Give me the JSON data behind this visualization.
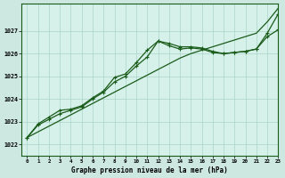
{
  "title": "Graphe pression niveau de la mer (hPa)",
  "bg_color": "#cce8e0",
  "plot_bg": "#d6f0ea",
  "grid_color": "#aad4c8",
  "line_color": "#1a5c1a",
  "xlim": [
    -0.5,
    23
  ],
  "ylim": [
    1021.5,
    1028.2
  ],
  "yticks": [
    1022,
    1023,
    1024,
    1025,
    1026,
    1027
  ],
  "ytick_labels": [
    "1022",
    "1023",
    "1024",
    "1025",
    "1026",
    "1027"
  ],
  "xticks": [
    0,
    1,
    2,
    3,
    4,
    5,
    6,
    7,
    8,
    9,
    10,
    11,
    12,
    13,
    14,
    15,
    16,
    17,
    18,
    19,
    20,
    21,
    22,
    23
  ],
  "series_trend": [
    1022.3,
    1022.55,
    1022.8,
    1023.05,
    1023.3,
    1023.55,
    1023.8,
    1024.05,
    1024.3,
    1024.55,
    1024.8,
    1025.05,
    1025.3,
    1025.55,
    1025.8,
    1026.0,
    1026.15,
    1026.3,
    1026.45,
    1026.6,
    1026.75,
    1026.9,
    1027.4,
    1028.0
  ],
  "series_jagged1": [
    1022.3,
    1022.9,
    1023.2,
    1023.5,
    1023.55,
    1023.7,
    1024.05,
    1024.35,
    1024.95,
    1025.1,
    1025.6,
    1026.15,
    1026.55,
    1026.35,
    1026.2,
    1026.25,
    1026.2,
    1026.05,
    1026.0,
    1026.05,
    1026.1,
    1026.2,
    1026.75,
    1027.05
  ],
  "series_jagged2": [
    1022.3,
    1022.85,
    1023.1,
    1023.35,
    1023.5,
    1023.65,
    1024.0,
    1024.3,
    1024.75,
    1025.0,
    1025.45,
    1025.85,
    1026.55,
    1026.45,
    1026.3,
    1026.3,
    1026.25,
    1026.1,
    1026.0,
    1026.05,
    1026.1,
    1026.2,
    1026.9,
    1027.75
  ]
}
